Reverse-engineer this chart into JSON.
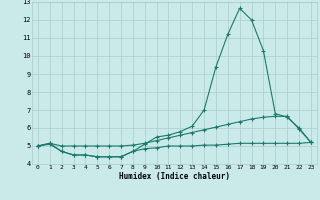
{
  "xlabel": "Humidex (Indice chaleur)",
  "x": [
    0,
    1,
    2,
    3,
    4,
    5,
    6,
    7,
    8,
    9,
    10,
    11,
    12,
    13,
    14,
    15,
    16,
    17,
    18,
    19,
    20,
    21,
    22,
    23
  ],
  "line1": [
    5.0,
    5.1,
    4.7,
    4.5,
    4.5,
    4.4,
    4.4,
    4.4,
    4.7,
    5.1,
    5.5,
    5.6,
    5.8,
    6.1,
    7.0,
    9.4,
    11.2,
    12.65,
    12.0,
    10.3,
    6.8,
    6.6,
    6.0,
    5.2
  ],
  "line2": [
    5.0,
    5.15,
    5.0,
    5.0,
    5.0,
    5.0,
    5.0,
    5.0,
    5.05,
    5.15,
    5.3,
    5.45,
    5.6,
    5.75,
    5.9,
    6.05,
    6.2,
    6.35,
    6.5,
    6.6,
    6.65,
    6.65,
    5.95,
    5.2
  ],
  "line3": [
    5.0,
    5.15,
    4.7,
    4.5,
    4.5,
    4.4,
    4.4,
    4.4,
    4.7,
    4.85,
    4.9,
    5.0,
    5.0,
    5.0,
    5.05,
    5.05,
    5.1,
    5.15,
    5.15,
    5.15,
    5.15,
    5.15,
    5.15,
    5.2
  ],
  "line_color": "#1a7a6a",
  "bg_color": "#caeaea",
  "grid_color": "#a8cccc",
  "ylim": [
    4,
    13
  ],
  "xlim": [
    -0.5,
    23.5
  ],
  "yticks": [
    4,
    5,
    6,
    7,
    8,
    9,
    10,
    11,
    12,
    13
  ],
  "xticks": [
    0,
    1,
    2,
    3,
    4,
    5,
    6,
    7,
    8,
    9,
    10,
    11,
    12,
    13,
    14,
    15,
    16,
    17,
    18,
    19,
    20,
    21,
    22,
    23
  ]
}
